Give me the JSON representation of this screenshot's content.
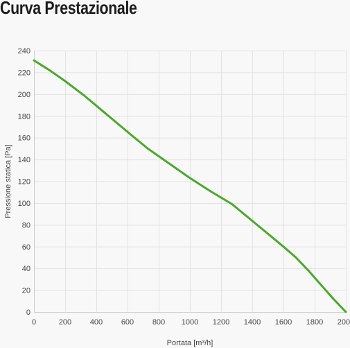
{
  "page": {
    "title": "Curva Prestazionale"
  },
  "chart_data": {
    "type": "line",
    "title": "",
    "xlabel": "Portata [m³/h]",
    "ylabel": "Pressione statica [Pa]",
    "xlim": [
      0,
      2000
    ],
    "ylim": [
      0,
      240
    ],
    "xticks": [
      0,
      200,
      400,
      600,
      800,
      1000,
      1200,
      1400,
      1600,
      1800,
      2000
    ],
    "yticks": [
      0,
      20,
      40,
      60,
      80,
      100,
      120,
      140,
      160,
      180,
      200,
      220,
      240
    ],
    "grid": true,
    "legend": "none",
    "colors": {
      "line": "#4aa82b",
      "grid": "#e2e2e2",
      "axis": "#cccccc"
    },
    "series": [
      {
        "x": [
          0,
          100,
          200,
          320,
          420,
          520,
          620,
          730,
          850,
          1000,
          1130,
          1270,
          1380,
          1490,
          1600,
          1680,
          1760,
          1840,
          1920,
          2000
        ],
        "values": [
          231,
          222,
          212,
          199,
          187,
          175,
          163,
          150,
          138,
          123,
          111,
          99,
          86,
          73,
          60,
          50,
          38,
          25,
          12,
          0
        ]
      }
    ]
  }
}
